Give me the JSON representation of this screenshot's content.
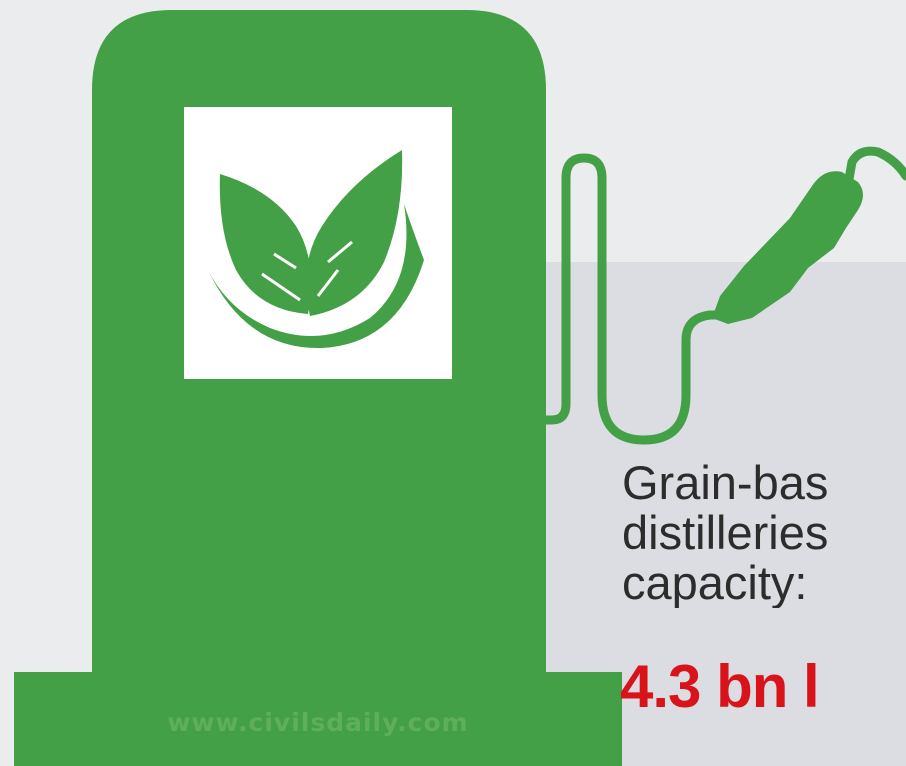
{
  "colors": {
    "pump_green": "#43a047",
    "background": "#ebecee",
    "panel": "#dcdde2",
    "value_red": "#d8141a"
  },
  "icons": {
    "pump": "fuel-pump-icon",
    "logo": "leaf-logo-icon",
    "nozzle": "fuel-nozzle-icon"
  },
  "stat": {
    "line1": "Grain-bas",
    "line2": "distilleries",
    "line3": "capacity:",
    "value": "4.3 bn l"
  },
  "watermark": "www.civilsdaily.com"
}
